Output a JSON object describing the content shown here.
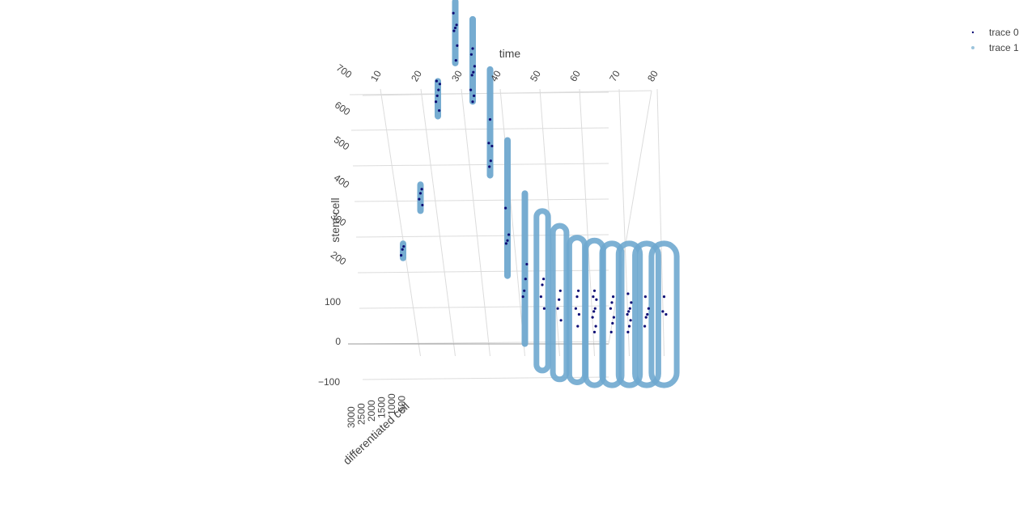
{
  "chart_data": {
    "type": "scatter3d",
    "axes": {
      "x": {
        "title": "time",
        "ticks": [
          10,
          20,
          30,
          40,
          50,
          60,
          70,
          80
        ],
        "range": [
          5,
          80
        ]
      },
      "y": {
        "title": "differentiated cell",
        "ticks": [
          500,
          1000,
          1500,
          2000,
          2500,
          3000
        ],
        "range": [
          0,
          3000
        ]
      },
      "z": {
        "title": "stem cell",
        "ticks": [
          -100,
          0,
          100,
          200,
          300,
          400,
          500,
          600,
          700
        ],
        "range": [
          -100,
          700
        ]
      }
    },
    "legend": {
      "position": "top-right",
      "entries": [
        "trace 0",
        "trace 1"
      ]
    },
    "series": [
      {
        "name": "trace 0",
        "color": "#0d0d75",
        "marker": "small-dot",
        "points": [
          {
            "time": 5,
            "stem": [
              150,
              160,
              165
            ]
          },
          {
            "time": 10,
            "stem": [
              235,
              245,
              255,
              262
            ]
          },
          {
            "time": 15,
            "stem": [
              395,
              410,
              420,
              430,
              440,
              445
            ]
          },
          {
            "time": 20,
            "stem": [
              480,
              505,
              530,
              535,
              540,
              560
            ]
          },
          {
            "time": 25,
            "stem": [
              410,
              420,
              430,
              455,
              460,
              470,
              490,
              500
            ]
          },
          {
            "time": 30,
            "stem": [
              300,
              310,
              335,
              340,
              380
            ]
          },
          {
            "time": 35,
            "stem": [
              170,
              175,
              185,
              230
            ]
          },
          {
            "time": 40,
            "stem": [
              80,
              90,
              110,
              135
            ]
          },
          {
            "time": 45,
            "stem": [
              60,
              80,
              100,
              110
            ]
          },
          {
            "time": 50,
            "stem": [
              40,
              60,
              75,
              90
            ]
          },
          {
            "time": 55,
            "stem": [
              30,
              50,
              60,
              80,
              90
            ]
          },
          {
            "time": 60,
            "stem": [
              20,
              30,
              45,
              55,
              60,
              75,
              80,
              90
            ]
          },
          {
            "time": 65,
            "stem": [
              20,
              35,
              45,
              60,
              70,
              80
            ]
          },
          {
            "time": 70,
            "stem": [
              20,
              30,
              40,
              50,
              55,
              60,
              70,
              85
            ]
          },
          {
            "time": 75,
            "stem": [
              30,
              45,
              50,
              60,
              80
            ]
          },
          {
            "time": 80,
            "stem": [
              50,
              55,
              80
            ]
          }
        ]
      },
      {
        "name": "trace 1",
        "color": "#6fa8cf",
        "marker": "dot",
        "bands": [
          {
            "time": 5,
            "stem_min": 140,
            "stem_max": 175,
            "diff_spread": 0
          },
          {
            "time": 10,
            "stem_min": 220,
            "stem_max": 275,
            "diff_spread": 0
          },
          {
            "time": 15,
            "stem_min": 380,
            "stem_max": 450,
            "diff_spread": 0
          },
          {
            "time": 20,
            "stem_min": 470,
            "stem_max": 585,
            "diff_spread": 0
          },
          {
            "time": 25,
            "stem_min": 405,
            "stem_max": 555,
            "diff_spread": 0
          },
          {
            "time": 30,
            "stem_min": 280,
            "stem_max": 470,
            "diff_spread": 0
          },
          {
            "time": 35,
            "stem_min": 110,
            "stem_max": 350,
            "diff_spread": 0
          },
          {
            "time": 40,
            "stem_min": -5,
            "stem_max": 260,
            "diff_spread": 0
          },
          {
            "time": 45,
            "stem_min": -45,
            "stem_max": 225,
            "diff_spread": 0.2
          },
          {
            "time": 50,
            "stem_min": -60,
            "stem_max": 200,
            "diff_spread": 0.4
          },
          {
            "time": 55,
            "stem_min": -65,
            "stem_max": 180,
            "diff_spread": 0.6
          },
          {
            "time": 60,
            "stem_min": -70,
            "stem_max": 175,
            "diff_spread": 0.8
          },
          {
            "time": 65,
            "stem_min": -70,
            "stem_max": 170,
            "diff_spread": 1.0
          },
          {
            "time": 70,
            "stem_min": -70,
            "stem_max": 170,
            "diff_spread": 1.2
          },
          {
            "time": 75,
            "stem_min": -70,
            "stem_max": 170,
            "diff_spread": 1.4
          },
          {
            "time": 80,
            "stem_min": -70,
            "stem_max": 170,
            "diff_spread": 1.6
          }
        ]
      }
    ]
  }
}
